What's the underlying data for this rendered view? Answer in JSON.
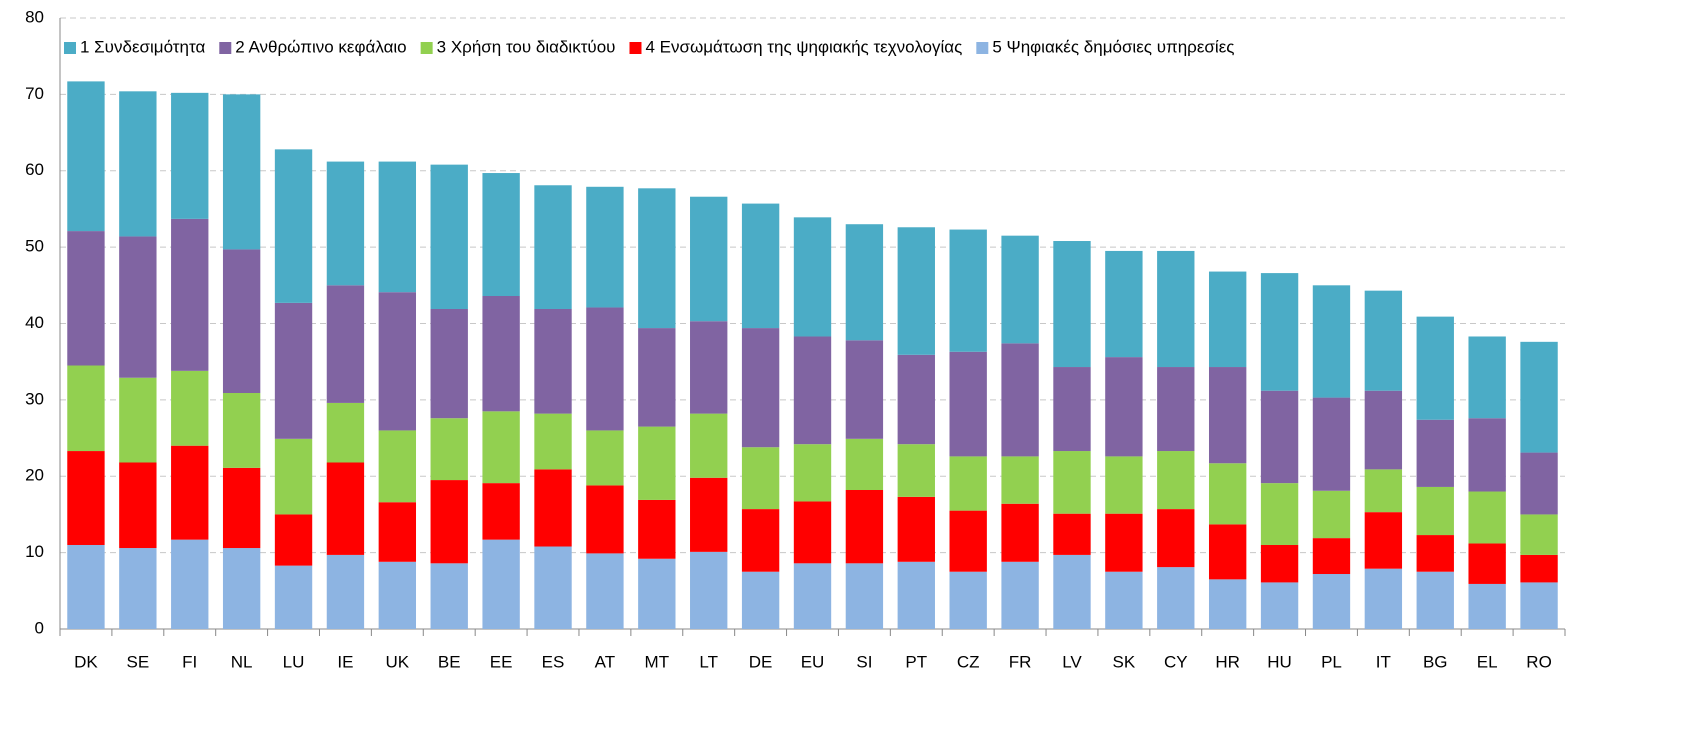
{
  "chart_data": {
    "type": "stacked_bar",
    "categories": [
      "DK",
      "SE",
      "FI",
      "NL",
      "LU",
      "IE",
      "UK",
      "BE",
      "EE",
      "ES",
      "AT",
      "MT",
      "LT",
      "DE",
      "EU",
      "SI",
      "PT",
      "CZ",
      "FR",
      "LV",
      "SK",
      "CY",
      "HR",
      "HU",
      "PL",
      "IT",
      "BG",
      "EL",
      "RO"
    ],
    "series": [
      {
        "name": "1 Συνδεσιμότητα",
        "color": "#4bacc6",
        "values": [
          19.6,
          19.0,
          16.5,
          20.3,
          20.1,
          16.2,
          17.1,
          18.9,
          16.1,
          16.2,
          15.8,
          18.3,
          16.3,
          16.3,
          15.6,
          15.2,
          16.7,
          16.0,
          14.1,
          16.5,
          13.9,
          15.2,
          12.5,
          15.4,
          14.7,
          13.1,
          13.5,
          10.7,
          14.5
        ]
      },
      {
        "name": "2 Ανθρώπινο κεφάλαιο",
        "color": "#8064a2",
        "values": [
          17.6,
          18.5,
          19.9,
          18.8,
          17.8,
          15.4,
          18.1,
          14.3,
          15.1,
          13.7,
          16.1,
          12.9,
          12.1,
          15.6,
          14.1,
          12.9,
          11.7,
          13.7,
          14.8,
          11.0,
          13.0,
          11.0,
          12.6,
          12.1,
          12.2,
          10.3,
          8.8,
          9.6,
          8.1
        ]
      },
      {
        "name": "3 Χρήση του διαδικτύου",
        "color": "#92d050",
        "values": [
          11.2,
          11.1,
          9.8,
          9.8,
          9.9,
          7.8,
          9.4,
          8.1,
          9.4,
          7.3,
          7.2,
          9.6,
          8.4,
          8.1,
          7.5,
          6.7,
          6.9,
          7.1,
          6.2,
          8.2,
          7.5,
          7.6,
          8.0,
          8.1,
          6.2,
          5.6,
          6.3,
          6.8,
          5.3
        ]
      },
      {
        "name": "4 Ενσωμάτωση της ψηφιακής τεχνολογίας",
        "color": "#ff0000",
        "values": [
          12.3,
          11.2,
          12.3,
          10.5,
          6.7,
          12.1,
          7.8,
          10.9,
          7.4,
          10.1,
          8.9,
          7.7,
          9.7,
          8.2,
          8.1,
          9.6,
          8.5,
          8.0,
          7.6,
          5.4,
          7.6,
          7.6,
          7.2,
          4.9,
          4.7,
          7.4,
          4.8,
          5.3,
          3.6
        ]
      },
      {
        "name": "5 Ψηφιακές δημόσιες υπηρεσίες",
        "color": "#8db4e2",
        "values": [
          11.0,
          10.6,
          11.7,
          10.6,
          8.3,
          9.7,
          8.8,
          8.6,
          11.7,
          10.8,
          9.9,
          9.2,
          10.1,
          7.5,
          8.6,
          8.6,
          8.8,
          7.5,
          8.8,
          9.7,
          7.5,
          8.1,
          6.5,
          6.1,
          7.2,
          7.9,
          7.5,
          5.9,
          6.1
        ]
      }
    ],
    "ylim": [
      0,
      80
    ],
    "yticks": [
      0,
      10,
      20,
      30,
      40,
      50,
      60,
      70,
      80
    ],
    "grid": true,
    "legend": "top"
  }
}
